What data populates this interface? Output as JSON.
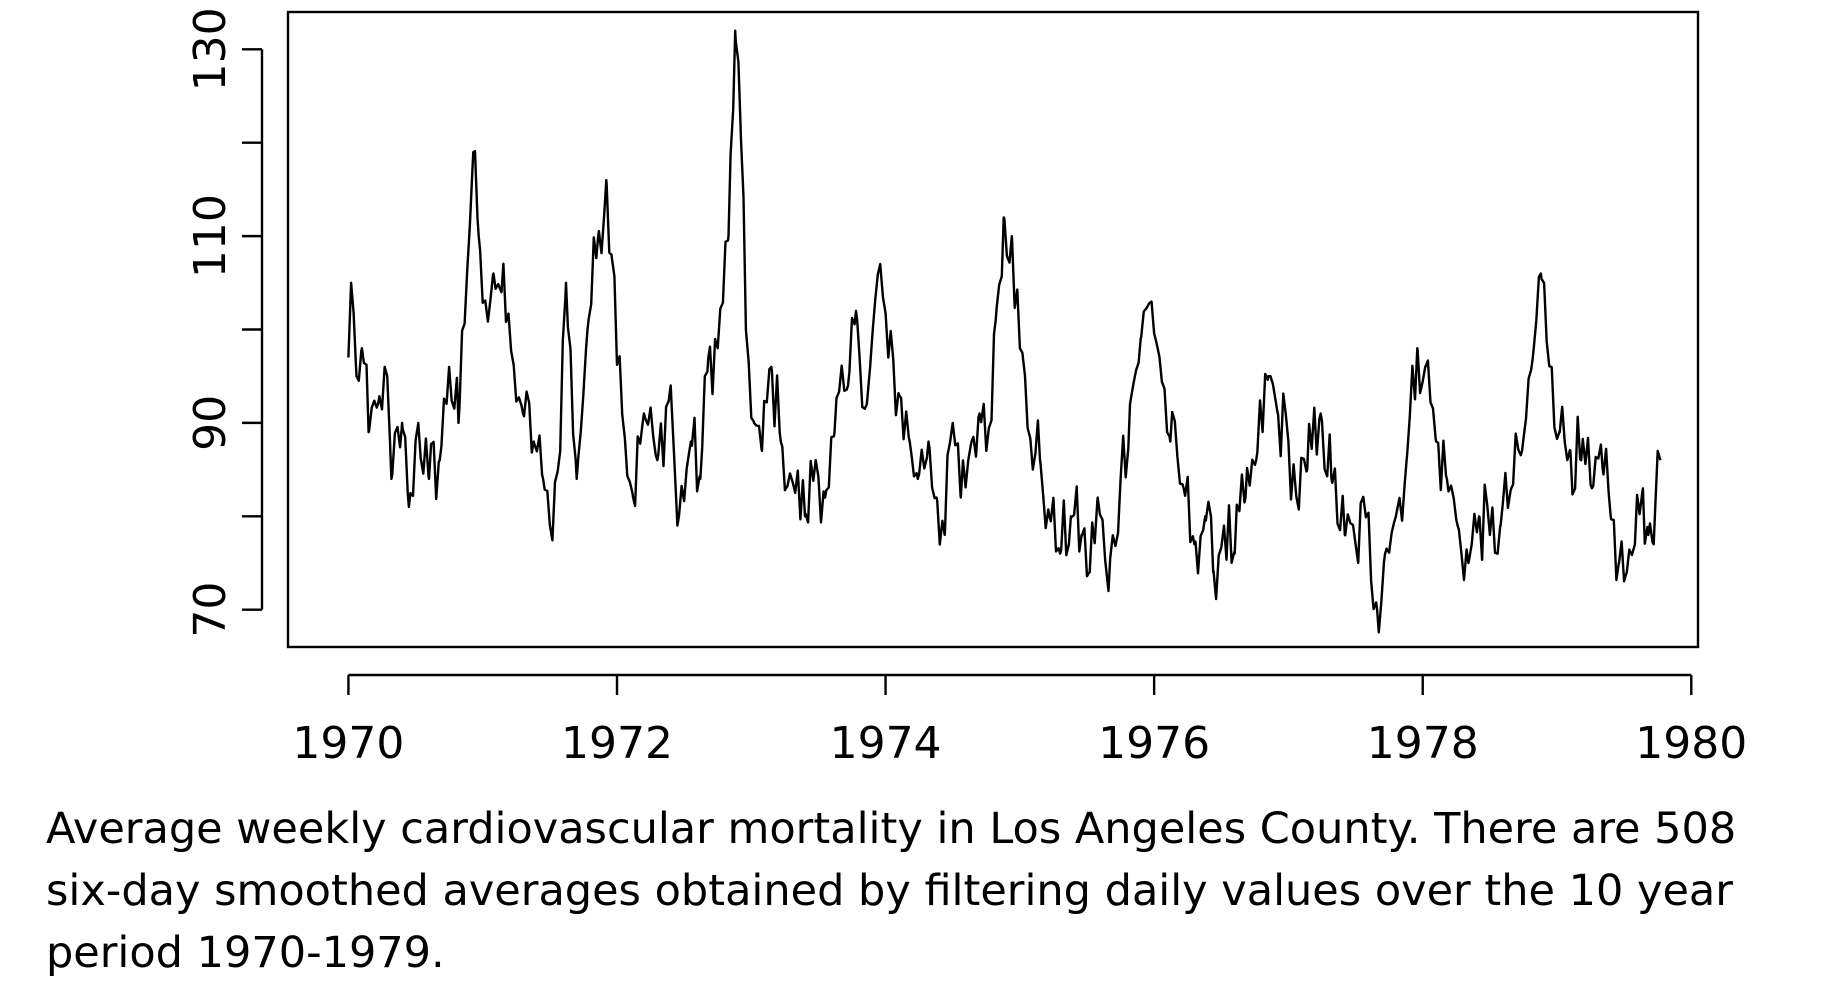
{
  "chart_data": {
    "type": "line",
    "title": "",
    "xlabel": "",
    "ylabel": "",
    "xlim": [
      1969.55,
      1980.05
    ],
    "ylim": [
      66,
      134
    ],
    "grid": false,
    "x_ticks": [
      1970,
      1972,
      1974,
      1976,
      1978,
      1980
    ],
    "x_tick_labels": [
      "1970",
      "1972",
      "1974",
      "1976",
      "1978",
      "1980"
    ],
    "y_ticks": [
      70,
      80,
      90,
      100,
      110,
      120,
      130
    ],
    "y_tick_labels": [
      "70",
      "",
      "90",
      "",
      "110",
      "",
      "130"
    ],
    "x_start": 1970.0,
    "x_step_weeks": 1,
    "n_points": 508,
    "weeks_per_year": 52,
    "series": [
      {
        "name": "",
        "color": "#000000",
        "keypoints": [
          [
            1970.0,
            97
          ],
          [
            1970.02,
            105
          ],
          [
            1970.06,
            95
          ],
          [
            1970.1,
            98
          ],
          [
            1970.15,
            89
          ],
          [
            1970.22,
            92
          ],
          [
            1970.27,
            96
          ],
          [
            1970.32,
            84
          ],
          [
            1970.4,
            90
          ],
          [
            1970.45,
            81
          ],
          [
            1970.52,
            90
          ],
          [
            1970.6,
            84
          ],
          [
            1970.68,
            86
          ],
          [
            1970.75,
            96
          ],
          [
            1970.82,
            90
          ],
          [
            1970.88,
            105
          ],
          [
            1970.93,
            119
          ],
          [
            1970.97,
            110
          ],
          [
            1971.02,
            103
          ],
          [
            1971.08,
            106
          ],
          [
            1971.14,
            104
          ],
          [
            1971.22,
            97
          ],
          [
            1971.3,
            91
          ],
          [
            1971.38,
            88
          ],
          [
            1971.45,
            84
          ],
          [
            1971.5,
            79
          ],
          [
            1971.56,
            85
          ],
          [
            1971.62,
            105
          ],
          [
            1971.7,
            84
          ],
          [
            1971.78,
            100
          ],
          [
            1971.86,
            110
          ],
          [
            1971.92,
            116
          ],
          [
            1971.96,
            108
          ],
          [
            1972.02,
            97
          ],
          [
            1972.06,
            88
          ],
          [
            1972.12,
            82
          ],
          [
            1972.2,
            91
          ],
          [
            1972.3,
            86
          ],
          [
            1972.4,
            94
          ],
          [
            1972.45,
            79
          ],
          [
            1972.55,
            88
          ],
          [
            1972.62,
            84
          ],
          [
            1972.68,
            97
          ],
          [
            1972.75,
            98
          ],
          [
            1972.83,
            110
          ],
          [
            1972.88,
            132
          ],
          [
            1972.92,
            122
          ],
          [
            1972.96,
            100
          ],
          [
            1973.02,
            90
          ],
          [
            1973.08,
            87
          ],
          [
            1973.15,
            96
          ],
          [
            1973.22,
            88
          ],
          [
            1973.3,
            84
          ],
          [
            1973.4,
            80
          ],
          [
            1973.48,
            86
          ],
          [
            1973.55,
            82
          ],
          [
            1973.62,
            89
          ],
          [
            1973.72,
            94
          ],
          [
            1973.78,
            102
          ],
          [
            1973.86,
            92
          ],
          [
            1973.96,
            107
          ],
          [
            1974.02,
            97
          ],
          [
            1974.1,
            93
          ],
          [
            1974.18,
            88
          ],
          [
            1974.24,
            84
          ],
          [
            1974.32,
            88
          ],
          [
            1974.38,
            82
          ],
          [
            1974.44,
            78
          ],
          [
            1974.5,
            90
          ],
          [
            1974.56,
            82
          ],
          [
            1974.64,
            88
          ],
          [
            1974.7,
            91
          ],
          [
            1974.75,
            87
          ],
          [
            1974.82,
            101
          ],
          [
            1974.88,
            112
          ],
          [
            1974.94,
            110
          ],
          [
            1975.0,
            98
          ],
          [
            1975.08,
            88
          ],
          [
            1975.15,
            86
          ],
          [
            1975.22,
            80
          ],
          [
            1975.3,
            76
          ],
          [
            1975.38,
            80
          ],
          [
            1975.46,
            78
          ],
          [
            1975.52,
            74
          ],
          [
            1975.58,
            82
          ],
          [
            1975.66,
            72
          ],
          [
            1975.75,
            84
          ],
          [
            1975.82,
            92
          ],
          [
            1975.9,
            99
          ],
          [
            1975.98,
            103
          ],
          [
            1976.04,
            97
          ],
          [
            1976.12,
            88
          ],
          [
            1976.22,
            83
          ],
          [
            1976.3,
            77
          ],
          [
            1976.38,
            80
          ],
          [
            1976.44,
            74
          ],
          [
            1976.52,
            79
          ],
          [
            1976.6,
            76
          ],
          [
            1976.68,
            82
          ],
          [
            1976.76,
            86
          ],
          [
            1976.85,
            95
          ],
          [
            1976.92,
            91
          ],
          [
            1977.0,
            88
          ],
          [
            1977.06,
            82
          ],
          [
            1977.14,
            85
          ],
          [
            1977.24,
            91
          ],
          [
            1977.32,
            84
          ],
          [
            1977.42,
            78
          ],
          [
            1977.5,
            77
          ],
          [
            1977.58,
            80
          ],
          [
            1977.66,
            70
          ],
          [
            1977.72,
            76
          ],
          [
            1977.8,
            80
          ],
          [
            1977.88,
            86
          ],
          [
            1977.96,
            98
          ],
          [
            1978.02,
            96
          ],
          [
            1978.1,
            88
          ],
          [
            1978.18,
            84
          ],
          [
            1978.26,
            79
          ],
          [
            1978.34,
            75
          ],
          [
            1978.42,
            80
          ],
          [
            1978.5,
            78
          ],
          [
            1978.58,
            79
          ],
          [
            1978.66,
            83
          ],
          [
            1978.74,
            87
          ],
          [
            1978.82,
            97
          ],
          [
            1978.88,
            106
          ],
          [
            1978.96,
            96
          ],
          [
            1979.02,
            89
          ],
          [
            1979.1,
            87
          ],
          [
            1979.18,
            86
          ],
          [
            1979.26,
            83
          ],
          [
            1979.34,
            85
          ],
          [
            1979.4,
            80
          ],
          [
            1979.46,
            75
          ],
          [
            1979.52,
            74
          ],
          [
            1979.58,
            77
          ],
          [
            1979.64,
            83
          ],
          [
            1979.68,
            78
          ],
          [
            1979.72,
            77
          ],
          [
            1979.75,
            87
          ],
          [
            1979.77,
            86
          ]
        ]
      }
    ]
  },
  "caption": {
    "text": "Average weekly cardiovascular mortality in Los Angeles County. There are 508 six-day smoothed averages obtained by filtering daily values over the 10 year period 1970-1979."
  }
}
